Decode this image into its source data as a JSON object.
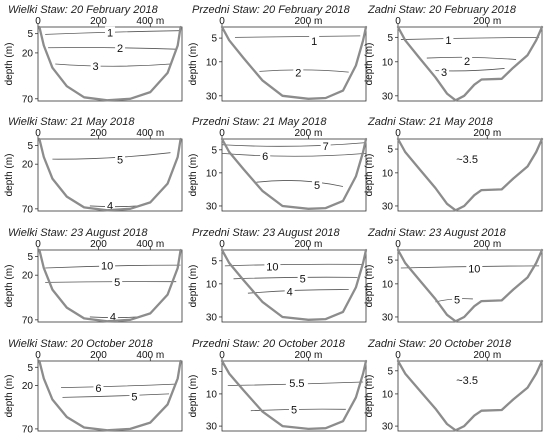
{
  "figure": {
    "ylabel": "depth (m)",
    "panels": [
      {
        "title": "Wielki Staw: 20 February 2018",
        "lake": "W",
        "xticks": [
          "0",
          "200",
          "400 m"
        ],
        "yticks": [
          "5",
          "20",
          "70"
        ],
        "lines": [
          {
            "label": "1",
            "depth": 5
          },
          {
            "label": "2",
            "depth": 20
          },
          {
            "label": "3",
            "depth": 35
          }
        ]
      },
      {
        "title": "Przedni Staw: 20 February 2018",
        "lake": "P",
        "xticks": [
          "0",
          "200 m"
        ],
        "yticks": [
          "5",
          "10",
          "30"
        ],
        "lines": [
          {
            "label": "1",
            "depth": 5
          },
          {
            "label": "2",
            "depth": 15
          }
        ]
      },
      {
        "title": "Zadni Staw: 20 February 2018",
        "lake": "Z",
        "xticks": [
          "0",
          "200 m"
        ],
        "yticks": [
          "5",
          "10",
          "30"
        ],
        "lines": [
          {
            "label": "1",
            "depth": 5
          },
          {
            "label": "2",
            "depth": 10
          },
          {
            "label": "3",
            "depth": 15
          }
        ]
      },
      {
        "title": "Wielki Staw: 21 May 2018",
        "lake": "W",
        "xticks": [
          "0",
          "200",
          "400 m"
        ],
        "yticks": [
          "5",
          "20",
          "70"
        ],
        "lines": [
          {
            "label": "5",
            "depth": 10
          },
          {
            "label": "4",
            "depth": 70
          }
        ]
      },
      {
        "title": "Przedni Staw: 21 May 2018",
        "lake": "P",
        "xticks": [
          "0",
          "200 m"
        ],
        "yticks": [
          "5",
          "10",
          "30"
        ],
        "lines": [
          {
            "label": "7",
            "depth": 2
          },
          {
            "label": "6",
            "depth": 5
          },
          {
            "label": "5",
            "depth": 15
          }
        ]
      },
      {
        "title": "Zadni Staw: 21 May 2018",
        "lake": "Z",
        "xticks": [
          "0",
          "200 m"
        ],
        "yticks": [
          "5",
          "10",
          "30"
        ],
        "lines": [],
        "center_label": "~3.5"
      },
      {
        "title": "Wielki Staw: 23 August 2018",
        "lake": "W",
        "xticks": [
          "0",
          "200",
          "400 m"
        ],
        "yticks": [
          "5",
          "20",
          "70"
        ],
        "lines": [
          {
            "label": "10",
            "depth": 10
          },
          {
            "label": "5",
            "depth": 20
          },
          {
            "label": "4",
            "depth": 70
          }
        ]
      },
      {
        "title": "Przedni Staw: 23 August 2018",
        "lake": "P",
        "xticks": [
          "0",
          "200 m"
        ],
        "yticks": [
          "5",
          "10",
          "30"
        ],
        "lines": [
          {
            "label": "10",
            "depth": 3
          },
          {
            "label": "5",
            "depth": 7
          },
          {
            "label": "4",
            "depth": 11
          }
        ]
      },
      {
        "title": "Zadni Staw: 23 August 2018",
        "lake": "Z",
        "xticks": [
          "0",
          "200 m"
        ],
        "yticks": [
          "5",
          "10",
          "30"
        ],
        "lines": [
          {
            "label": "10",
            "depth": 5
          },
          {
            "label": "5",
            "depth": 18
          }
        ]
      },
      {
        "title": "Wielki Staw: 20 October 2018",
        "lake": "W",
        "xticks": [
          "0",
          "200",
          "400 m"
        ],
        "yticks": [
          "5",
          "20",
          "70"
        ],
        "lines": [
          {
            "label": "6",
            "depth": 20
          },
          {
            "label": "5",
            "depth": 25
          }
        ]
      },
      {
        "title": "Przedni Staw: 20 October 2018",
        "lake": "P",
        "xticks": [
          "0",
          "200 m"
        ],
        "yticks": [
          "5",
          "10",
          "30"
        ],
        "lines": [
          {
            "label": "5.5",
            "depth": 5
          },
          {
            "label": "5",
            "depth": 15
          }
        ]
      },
      {
        "title": "Zadni Staw: 20 October 2018",
        "lake": "Z",
        "xticks": [
          "0",
          "200 m"
        ],
        "yticks": [
          "5",
          "10",
          "30"
        ],
        "lines": [],
        "center_label": "~3.5"
      }
    ]
  }
}
